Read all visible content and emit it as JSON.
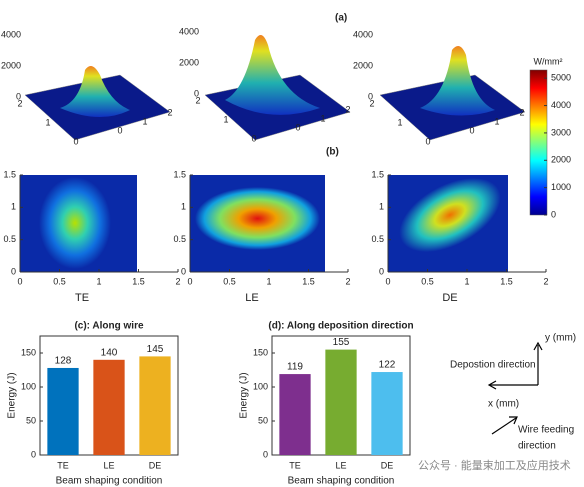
{
  "panel_labels": {
    "a": "(a)",
    "b": "(b)"
  },
  "surfaces": [
    {
      "zticks": [
        0,
        2000,
        4000
      ],
      "xticks": [
        0,
        1,
        2
      ],
      "yticks": [
        0,
        1,
        2
      ]
    },
    {
      "zticks": [
        0,
        2000,
        4000
      ],
      "xticks": [
        0,
        1,
        2
      ],
      "yticks": [
        0,
        1,
        2
      ]
    },
    {
      "zticks": [
        0,
        2000,
        4000
      ],
      "xticks": [
        0,
        1,
        2
      ],
      "yticks": [
        0,
        1,
        2
      ]
    }
  ],
  "colorbar": {
    "label": "W/mm²",
    "lim": [
      0,
      5300
    ],
    "ticks": [
      0,
      1000,
      2000,
      3000,
      4000,
      5000
    ]
  },
  "heatmaps": [
    {
      "label": "TE",
      "xlim": [
        0,
        2
      ],
      "ylim": [
        0,
        1.5
      ],
      "xticks": [
        0,
        0.5,
        1,
        1.5,
        2
      ],
      "yticks": [
        0,
        0.5,
        1,
        1.5
      ]
    },
    {
      "label": "LE",
      "xlim": [
        0,
        2
      ],
      "ylim": [
        0,
        1.5
      ],
      "xticks": [
        0,
        0.5,
        1,
        1.5,
        2
      ],
      "yticks": [
        0,
        0.5,
        1,
        1.5
      ]
    },
    {
      "label": "DE",
      "xlim": [
        0,
        2
      ],
      "ylim": [
        0,
        1.5
      ],
      "xticks": [
        0,
        0.5,
        1,
        1.5,
        2
      ],
      "yticks": [
        0,
        0.5,
        1,
        1.5
      ]
    }
  ],
  "chart_data": [
    {
      "type": "bar",
      "title": "(c): Along wire",
      "categories": [
        "TE",
        "LE",
        "DE"
      ],
      "values": [
        128,
        140,
        145
      ],
      "colors": [
        "#0072bd",
        "#d95319",
        "#edb120"
      ],
      "ylim": [
        0,
        175
      ],
      "yticks": [
        0,
        50,
        100,
        150
      ],
      "ylabel": "Energy (J)",
      "xlabel": "Beam shaping condition"
    },
    {
      "type": "bar",
      "title": "(d): Along deposition direction",
      "categories": [
        "TE",
        "LE",
        "DE"
      ],
      "values": [
        119,
        155,
        122
      ],
      "colors": [
        "#7e2f8e",
        "#77ac30",
        "#4dbeee"
      ],
      "ylim": [
        0,
        175
      ],
      "yticks": [
        0,
        50,
        100,
        150
      ],
      "ylabel": "Energy (J)",
      "xlabel": "Beam shaping condition"
    }
  ],
  "diagram": {
    "y_axis": "y (mm)",
    "deposition": "Depostion direction",
    "x_axis": "x (mm)",
    "wire_feeding_1": "Wire feeding",
    "wire_feeding_2": "direction"
  },
  "watermark": "公众号 · 能量束加工及应用技术"
}
